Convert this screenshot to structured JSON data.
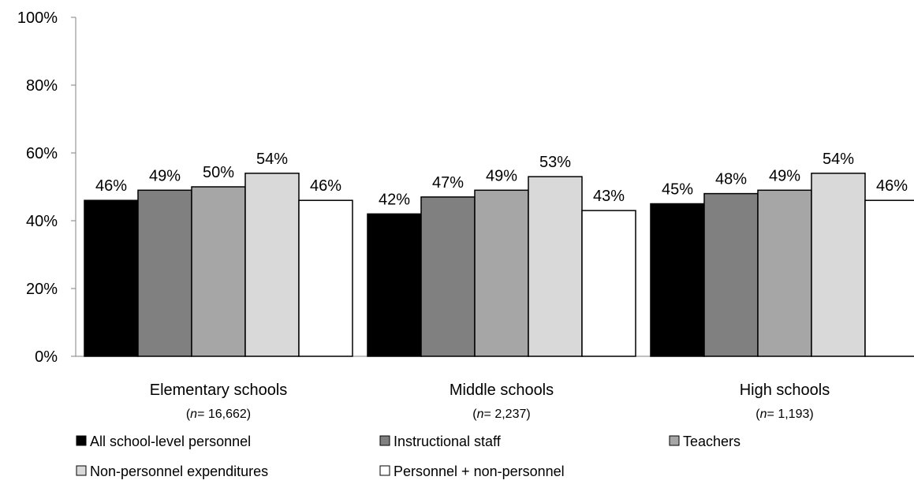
{
  "chart_data": {
    "type": "bar",
    "categories": [
      "Elementary schools",
      "Middle schools",
      "High schools"
    ],
    "category_notes": [
      {
        "prefix": "(",
        "n": "n",
        "rest": "= 16,662)"
      },
      {
        "prefix": "(",
        "n": "n",
        "rest": "= 2,237)"
      },
      {
        "prefix": "(",
        "n": "n",
        "rest": "= 1,193)"
      }
    ],
    "series": [
      {
        "name": "All school-level personnel",
        "values": [
          46,
          42,
          45
        ],
        "labels": [
          "46%",
          "42%",
          "45%"
        ],
        "color": "#000000"
      },
      {
        "name": "Instructional staff",
        "values": [
          49,
          47,
          48
        ],
        "labels": [
          "49%",
          "47%",
          "48%"
        ],
        "color": "#808080"
      },
      {
        "name": "Teachers",
        "values": [
          50,
          49,
          49
        ],
        "labels": [
          "50%",
          "49%",
          "49%"
        ],
        "color": "#a6a6a6"
      },
      {
        "name": "Non-personnel expenditures",
        "values": [
          54,
          53,
          54
        ],
        "labels": [
          "54%",
          "53%",
          "54%"
        ],
        "color": "#d9d9d9"
      },
      {
        "name": "Personnel + non-personnel",
        "values": [
          46,
          43,
          46
        ],
        "labels": [
          "46%",
          "43%",
          "46%"
        ],
        "color": "#ffffff"
      }
    ],
    "yticks": [
      "0%",
      "20%",
      "40%",
      "60%",
      "80%",
      "100%"
    ],
    "ylim": [
      0,
      100
    ],
    "grid": false,
    "legend_position": "bottom"
  }
}
